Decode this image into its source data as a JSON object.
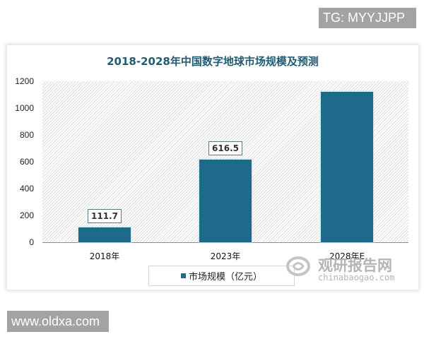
{
  "watermarks": {
    "top_badge": "TG: MYYJJPP",
    "bottom_badge": "www.oldxa.com",
    "brand_cn": "观研报告网",
    "brand_en": "chinabaogao.com"
  },
  "colors": {
    "bar": "#1e6a8d",
    "title": "#1f5b72",
    "badge_bg": "#a3a3a3"
  },
  "chart_data": {
    "type": "bar",
    "title": "2018-2028年中国数字地球市场规模及预测",
    "categories": [
      "2018年",
      "2023年",
      "2028年E"
    ],
    "series": [
      {
        "name": "市场规模（亿元）",
        "values": [
          111.7,
          616.5,
          1120
        ]
      }
    ],
    "data_labels": [
      "111.7",
      "616.5",
      ""
    ],
    "xlabel": "",
    "ylabel": "",
    "ylim": [
      0,
      1200
    ],
    "yticks": [
      0,
      200,
      400,
      600,
      800,
      1000,
      1200
    ],
    "grid": false,
    "legend_position": "bottom",
    "plot_background": "diagonal hatch"
  }
}
